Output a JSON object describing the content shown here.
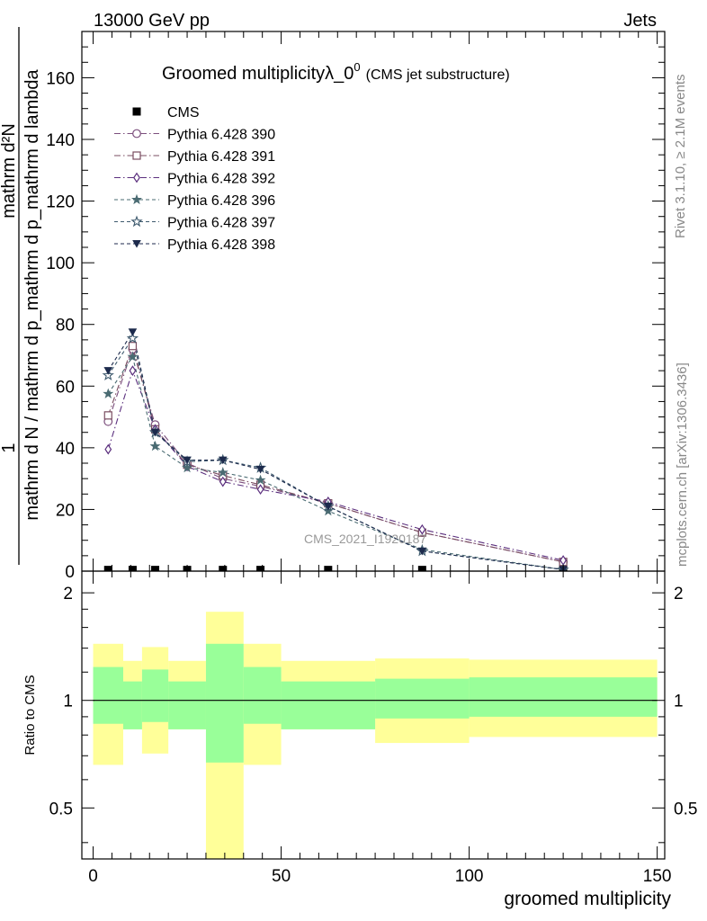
{
  "header": {
    "energy_label": "13000 GeV pp",
    "category_label": "Jets"
  },
  "side_text": {
    "rivet": "Rivet 3.1.10, ≥ 2.1M events",
    "mcplots": "mcplots.cern.ch [arXiv:1306.3436]"
  },
  "watermark": "CMS_2021_I1920187",
  "colors": {
    "p390": "#7c4f7d",
    "p391": "#7a4d60",
    "p392": "#5b2f7e",
    "p396": "#4a6b72",
    "p397": "#3e5a6e",
    "p398": "#1c2a4c",
    "band_inner": "#99ff99",
    "band_outer": "#ffff99"
  },
  "chart_data": [
    {
      "type": "line",
      "title_main": "Groomed multiplicityλ_0",
      "title_sup": "0",
      "title_sub": "(CMS jet substructure)",
      "ylabel_top": "1",
      "ylabel_numer": "mathrm d²N",
      "ylabel_denom": "mathrm d N / mathrm d p_mathrm d p_mathrm d lambda",
      "xlim": [
        -3,
        152
      ],
      "ylim": [
        0,
        175
      ],
      "yticks": [
        0,
        20,
        40,
        60,
        80,
        100,
        120,
        140,
        160
      ],
      "legend_position": "top-left",
      "series": [
        {
          "name": "CMS",
          "key": "cms",
          "marker": "square-filled",
          "color": "#000000",
          "x": [
            4,
            10.5,
            16.5,
            25,
            34.5,
            44.5,
            62.5,
            87.5,
            125
          ],
          "y": [
            0.4,
            0.4,
            0.4,
            0.4,
            0.4,
            0.4,
            0.4,
            0.4,
            0.4
          ]
        },
        {
          "name": "Pythia 6.428 390",
          "key": "p390",
          "marker": "circle-open",
          "dash": "dashdot",
          "x": [
            4,
            10.5,
            16.5,
            25,
            34.5,
            44.5,
            62.5,
            87.5,
            125
          ],
          "y": [
            48.5,
            72,
            47.5,
            35,
            30,
            27.5,
            22,
            12.5,
            3
          ]
        },
        {
          "name": "Pythia 6.428 391",
          "key": "p391",
          "marker": "square-open",
          "dash": "dashdot",
          "x": [
            4,
            10.5,
            16.5,
            25,
            34.5,
            44.5,
            62.5,
            87.5,
            125
          ],
          "y": [
            50.5,
            73,
            46,
            34.5,
            31,
            28,
            22,
            12.5,
            3
          ]
        },
        {
          "name": "Pythia 6.428 392",
          "key": "p392",
          "marker": "diamond-open",
          "dash": "dashdot",
          "x": [
            4,
            10.5,
            16.5,
            25,
            34.5,
            44.5,
            62.5,
            87.5,
            125
          ],
          "y": [
            39.5,
            65,
            46,
            34,
            29,
            26.5,
            22.5,
            13.5,
            3.5
          ]
        },
        {
          "name": "Pythia 6.428 396",
          "key": "p396",
          "marker": "star-filled",
          "dash": "dashed",
          "x": [
            4,
            10.5,
            16.5,
            25,
            34.5,
            44.5,
            62.5,
            87.5,
            125
          ],
          "y": [
            57.5,
            69.5,
            40.5,
            33.5,
            32,
            29.5,
            19.5,
            7,
            0.5
          ]
        },
        {
          "name": "Pythia 6.428 397",
          "key": "p397",
          "marker": "star-open",
          "dash": "dashed",
          "x": [
            4,
            10.5,
            16.5,
            25,
            34.5,
            44.5,
            62.5,
            87.5,
            125
          ],
          "y": [
            63.5,
            75.5,
            45,
            35.5,
            36,
            33.5,
            21,
            6.5,
            0.5
          ]
        },
        {
          "name": "Pythia 6.428 398",
          "key": "p398",
          "marker": "triangle-down-filled",
          "dash": "dashed",
          "x": [
            4,
            10.5,
            16.5,
            25,
            34.5,
            44.5,
            62.5,
            87.5,
            125
          ],
          "y": [
            65,
            77.5,
            45,
            36,
            36,
            33,
            21,
            6.5,
            0.5
          ]
        }
      ]
    },
    {
      "type": "area",
      "ylabel": "Ratio to CMS",
      "xlabel": "groomed multiplicity",
      "xlim": [
        -3,
        152
      ],
      "ylim": [
        0.36,
        2.3
      ],
      "log_scale_y": true,
      "yticks": [
        0.5,
        1,
        2
      ],
      "xticks": [
        0,
        50,
        100,
        150
      ],
      "reference_line": 1,
      "bins": [
        {
          "x0": 0,
          "x1": 8,
          "inner": [
            0.86,
            1.24
          ],
          "outer": [
            0.66,
            1.44
          ]
        },
        {
          "x0": 8,
          "x1": 13,
          "inner": [
            0.83,
            1.13
          ],
          "outer": [
            0.83,
            1.29
          ]
        },
        {
          "x0": 13,
          "x1": 20,
          "inner": [
            0.87,
            1.22
          ],
          "outer": [
            0.71,
            1.41
          ]
        },
        {
          "x0": 20,
          "x1": 30,
          "inner": [
            0.83,
            1.13
          ],
          "outer": [
            0.83,
            1.29
          ]
        },
        {
          "x0": 30,
          "x1": 40,
          "inner": [
            0.67,
            1.44
          ],
          "outer": [
            0.36,
            1.77
          ]
        },
        {
          "x0": 40,
          "x1": 50,
          "inner": [
            0.86,
            1.24
          ],
          "outer": [
            0.66,
            1.44
          ]
        },
        {
          "x0": 50,
          "x1": 75,
          "inner": [
            0.83,
            1.13
          ],
          "outer": [
            0.83,
            1.29
          ]
        },
        {
          "x0": 75,
          "x1": 100,
          "inner": [
            0.89,
            1.15
          ],
          "outer": [
            0.76,
            1.31
          ]
        },
        {
          "x0": 100,
          "x1": 150,
          "inner": [
            0.9,
            1.16
          ],
          "outer": [
            0.79,
            1.3
          ]
        }
      ]
    }
  ]
}
